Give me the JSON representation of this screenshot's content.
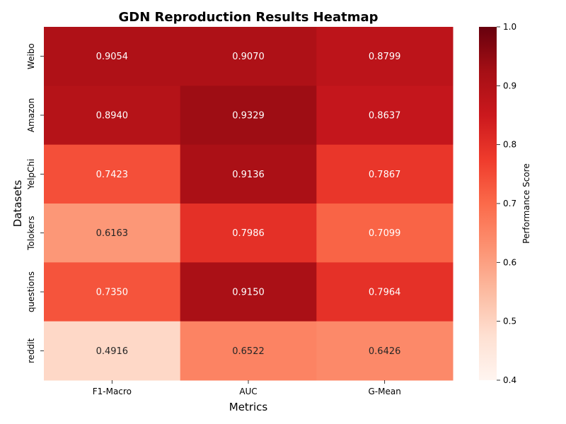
{
  "chart_data": {
    "type": "heatmap",
    "title": "GDN Reproduction Results Heatmap",
    "xlabel": "Metrics",
    "ylabel": "Datasets",
    "x_categories": [
      "F1-Macro",
      "AUC",
      "G-Mean"
    ],
    "y_categories": [
      "Weibo",
      "Amazon",
      "YelpChi",
      "Tolokers",
      "questions",
      "reddit"
    ],
    "values": [
      [
        0.9054,
        0.907,
        0.8799
      ],
      [
        0.894,
        0.9329,
        0.8637
      ],
      [
        0.7423,
        0.9136,
        0.7867
      ],
      [
        0.6163,
        0.7986,
        0.7099
      ],
      [
        0.735,
        0.915,
        0.7964
      ],
      [
        0.4916,
        0.6522,
        0.6426
      ]
    ],
    "value_format": "4 decimals",
    "colormap": "Reds",
    "color_range": [
      0.4,
      1.0
    ],
    "colorbar": {
      "label": "Performance Score",
      "ticks": [
        "0.4",
        "0.5",
        "0.6",
        "0.7",
        "0.8",
        "0.9",
        "1.0"
      ],
      "placement": "right"
    }
  }
}
